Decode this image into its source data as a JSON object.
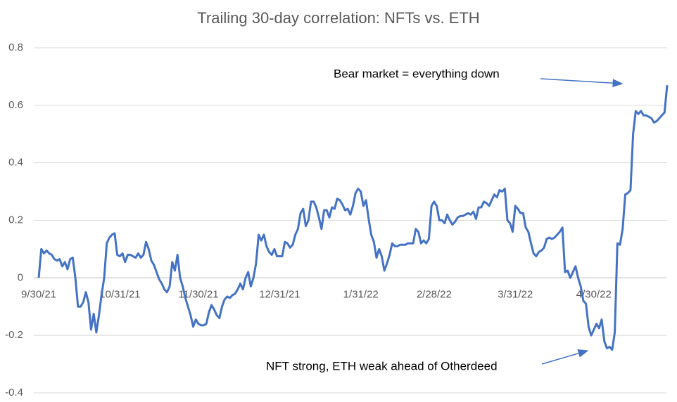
{
  "chart_data": {
    "type": "line",
    "title": "Trailing 30-day correlation: NFTs vs. ETH",
    "categories": [
      "9/30/21",
      null,
      null,
      null,
      null,
      null,
      null,
      null,
      null,
      null,
      null,
      null,
      null,
      null,
      null,
      null,
      null,
      null,
      null,
      null,
      null,
      null,
      null,
      null,
      null,
      null,
      null,
      null,
      null,
      null,
      null,
      "10/31/21",
      null,
      null,
      null,
      null,
      null,
      null,
      null,
      null,
      null,
      null,
      null,
      null,
      null,
      null,
      null,
      null,
      null,
      null,
      null,
      null,
      null,
      null,
      null,
      null,
      null,
      null,
      null,
      null,
      null,
      "11/30/21",
      null,
      null,
      null,
      null,
      null,
      null,
      null,
      null,
      null,
      null,
      null,
      null,
      null,
      null,
      null,
      null,
      null,
      null,
      null,
      null,
      null,
      null,
      null,
      null,
      null,
      null,
      null,
      null,
      null,
      null,
      "12/31/21",
      null,
      null,
      null,
      null,
      null,
      null,
      null,
      null,
      null,
      null,
      null,
      null,
      null,
      null,
      null,
      null,
      null,
      null,
      null,
      null,
      null,
      null,
      null,
      null,
      null,
      null,
      null,
      null,
      null,
      null,
      "1/31/22",
      null,
      null,
      null,
      null,
      null,
      null,
      null,
      null,
      null,
      null,
      null,
      null,
      null,
      null,
      null,
      null,
      null,
      null,
      null,
      null,
      null,
      null,
      null,
      null,
      null,
      null,
      null,
      "2/28/22",
      null,
      null,
      null,
      null,
      null,
      null,
      null,
      null,
      null,
      null,
      null,
      null,
      null,
      null,
      null,
      null,
      null,
      null,
      null,
      null,
      null,
      null,
      null,
      null,
      null,
      null,
      null,
      null,
      null,
      null,
      "3/31/22",
      null,
      null,
      null,
      null,
      null,
      null,
      null,
      null,
      null,
      null,
      null,
      null,
      null,
      null,
      null,
      null,
      null,
      null,
      null,
      null,
      null,
      null,
      null,
      null,
      null,
      null,
      null,
      null,
      null,
      "4/30/22",
      null,
      null,
      null,
      null,
      null,
      null,
      null,
      null,
      null,
      null,
      null,
      null,
      null,
      null,
      null,
      null,
      null,
      null,
      null,
      null,
      null,
      null,
      null,
      null,
      null,
      null,
      null,
      null
    ],
    "series": [
      {
        "name": "Trailing 30-day correlation",
        "color": "#4472c4",
        "values": [
          0,
          0.1,
          0.085,
          0.095,
          0.085,
          0.08,
          0.065,
          0.06,
          0.065,
          0.04,
          0.055,
          0.03,
          0.065,
          0.07,
          0,
          -0.1,
          -0.1,
          -0.085,
          -0.05,
          -0.085,
          -0.18,
          -0.125,
          -0.19,
          -0.13,
          -0.06,
          0,
          0.12,
          0.14,
          0.15,
          0.155,
          0.08,
          0.075,
          0.085,
          0.055,
          0.08,
          0.08,
          0.075,
          0.07,
          0.085,
          0.07,
          0.08,
          0.125,
          0.1,
          0.06,
          0.045,
          0.02,
          -0.005,
          -0.02,
          -0.04,
          -0.05,
          -0.03,
          0.055,
          0.025,
          0.08,
          0,
          -0.03,
          -0.07,
          -0.1,
          -0.13,
          -0.17,
          -0.145,
          -0.16,
          -0.165,
          -0.165,
          -0.16,
          -0.12,
          -0.095,
          -0.11,
          -0.13,
          -0.14,
          -0.1,
          -0.075,
          -0.065,
          -0.07,
          -0.06,
          -0.055,
          -0.04,
          -0.02,
          -0.04,
          0,
          0.02,
          -0.03,
          0,
          0.05,
          0.15,
          0.13,
          0.15,
          0.11,
          0.09,
          0.08,
          0.1,
          0.075,
          0.075,
          0.075,
          0.125,
          0.12,
          0.105,
          0.115,
          0.15,
          0.17,
          0.225,
          0.24,
          0.18,
          0.2,
          0.265,
          0.265,
          0.245,
          0.21,
          0.17,
          0.235,
          0.235,
          0.21,
          0.245,
          0.24,
          0.275,
          0.27,
          0.255,
          0.235,
          0.24,
          0.22,
          0.25,
          0.295,
          0.31,
          0.3,
          0.25,
          0.27,
          0.205,
          0.15,
          0.125,
          0.07,
          0.1,
          0.075,
          0.025,
          0.05,
          0.08,
          0.12,
          0.11,
          0.11,
          0.115,
          0.115,
          0.115,
          0.12,
          0.12,
          0.12,
          0.17,
          0.16,
          0.12,
          0.13,
          0.12,
          0.135,
          0.25,
          0.265,
          0.25,
          0.2,
          0.2,
          0.19,
          0.22,
          0.2,
          0.185,
          0.195,
          0.21,
          0.215,
          0.215,
          0.22,
          0.225,
          0.22,
          0.23,
          0.205,
          0.245,
          0.245,
          0.265,
          0.26,
          0.25,
          0.27,
          0.29,
          0.28,
          0.305,
          0.3,
          0.31,
          0.2,
          0.19,
          0.16,
          0.25,
          0.24,
          0.225,
          0.225,
          0.175,
          0.16,
          0.12,
          0.085,
          0.075,
          0.09,
          0.095,
          0.105,
          0.135,
          0.14,
          0.135,
          0.14,
          0.15,
          0.16,
          0.175,
          0.02,
          0.025,
          0,
          0.02,
          0.04,
          0,
          -0.03,
          -0.08,
          -0.09,
          -0.17,
          -0.2,
          -0.18,
          -0.16,
          -0.175,
          -0.145,
          -0.22,
          -0.245,
          -0.24,
          -0.25,
          -0.19,
          0.12,
          0.115,
          0.17,
          0.29,
          0.295,
          0.305,
          0.5,
          0.58,
          0.57,
          0.58,
          0.565,
          0.565,
          0.56,
          0.555,
          0.54,
          0.545,
          0.555,
          0.565,
          0.575,
          0.67
        ]
      }
    ],
    "ylim": [
      -0.4,
      0.8
    ],
    "yticks": [
      -0.4,
      -0.2,
      0,
      0.2,
      0.4,
      0.6,
      0.8
    ],
    "grid": true,
    "annotations": [
      "Bear market = everything down",
      "NFT strong, ETH weak ahead of Otherdeed"
    ]
  }
}
